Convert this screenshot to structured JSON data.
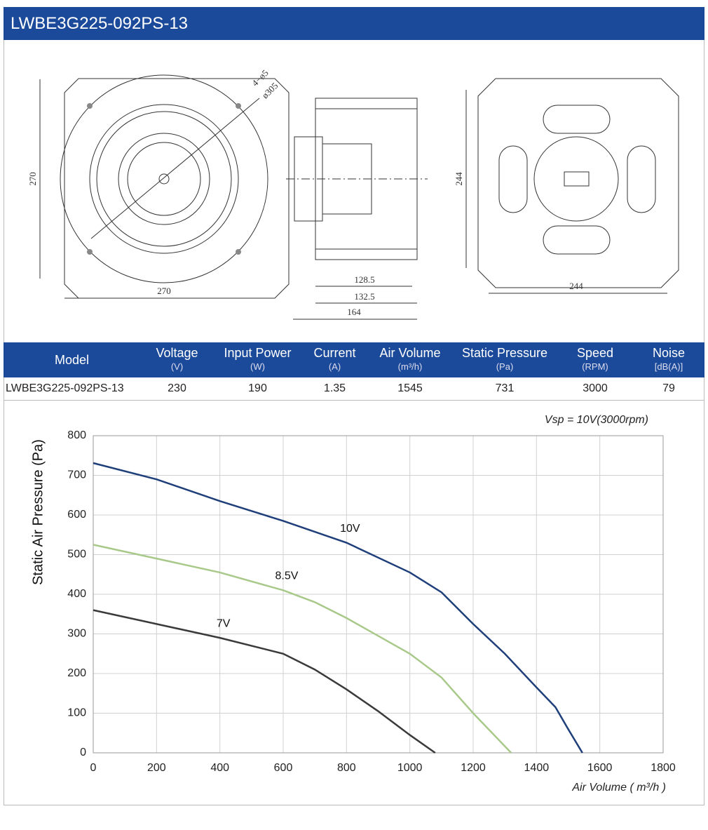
{
  "header": {
    "title": "LWBE3G225-092PS-13"
  },
  "drawing": {
    "labels": {
      "holes": "4−ø5",
      "diameter": "ø305",
      "front_height": "270",
      "front_width": "270",
      "side_a": "128.5",
      "side_b": "132.5",
      "side_c": "164",
      "back_height": "244",
      "back_width": "244"
    }
  },
  "table": {
    "columns": [
      {
        "name": "Model"
      },
      {
        "name": "Voltage",
        "unit": "(V)"
      },
      {
        "name": "Input Power",
        "unit": "(W)"
      },
      {
        "name": "Current",
        "unit": "(A)"
      },
      {
        "name": "Air Volume",
        "unit": "(m³/h)"
      },
      {
        "name": "Static Pressure",
        "unit": "(Pa)"
      },
      {
        "name": "Speed",
        "unit": "(RPM)"
      },
      {
        "name": "Noise",
        "unit": "[dB(A)]"
      }
    ],
    "rows": [
      [
        "LWBE3G225-092PS-13",
        230,
        190,
        1.35,
        1545,
        731,
        3000,
        79
      ]
    ]
  },
  "chart_data": {
    "type": "line",
    "subtitle": "Vsp = 10V(3000rpm)",
    "xlabel": "Air Volume ( m³/h )",
    "ylabel": "Static Air Pressure  (Pa)",
    "xlim": [
      0,
      1800
    ],
    "xticks": [
      0,
      200,
      400,
      600,
      800,
      1000,
      1200,
      1400,
      1600,
      1800
    ],
    "ylim": [
      0,
      800
    ],
    "yticks": [
      0,
      100,
      200,
      300,
      400,
      500,
      600,
      700,
      800
    ],
    "grid": true,
    "series": [
      {
        "name": "10V",
        "color": "#1f3f7a",
        "x": [
          0,
          200,
          400,
          600,
          800,
          1000,
          1100,
          1200,
          1300,
          1400,
          1460,
          1500,
          1545
        ],
        "values": [
          731,
          690,
          635,
          585,
          530,
          455,
          405,
          325,
          250,
          165,
          115,
          60,
          0
        ]
      },
      {
        "name": "8.5V",
        "color": "#a9c98a",
        "x": [
          0,
          200,
          400,
          600,
          700,
          800,
          900,
          1000,
          1100,
          1200,
          1320
        ],
        "values": [
          525,
          490,
          455,
          410,
          380,
          340,
          295,
          250,
          190,
          100,
          0
        ]
      },
      {
        "name": "7V",
        "color": "#3a3a3a",
        "x": [
          0,
          200,
          400,
          600,
          700,
          800,
          900,
          1000,
          1080
        ],
        "values": [
          360,
          325,
          290,
          250,
          210,
          160,
          105,
          45,
          0
        ]
      }
    ]
  }
}
